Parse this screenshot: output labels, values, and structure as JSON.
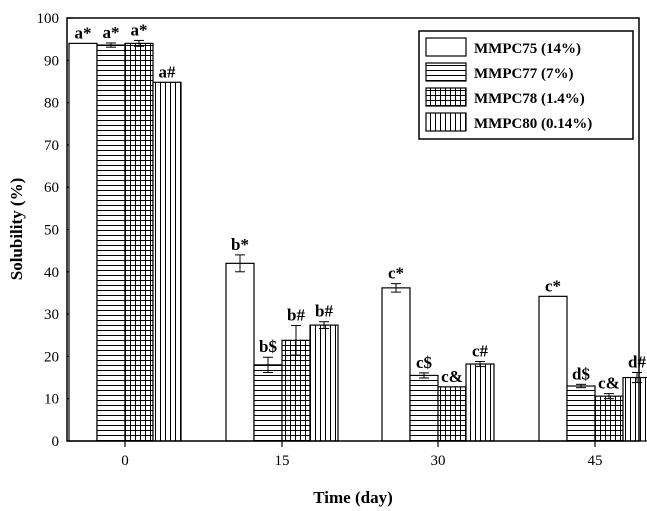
{
  "chart_data": {
    "type": "bar",
    "xlabel": "Time (day)",
    "ylabel": "Solubility (%)",
    "ylim": [
      0,
      100
    ],
    "yticks": [
      0,
      10,
      20,
      30,
      40,
      50,
      60,
      70,
      80,
      90,
      100
    ],
    "categories": [
      "0",
      "15",
      "30",
      "45"
    ],
    "legend_position": "top-right",
    "series": [
      {
        "name": "MMPC75 (14%)",
        "pattern": "none",
        "values": [
          94,
          42,
          36.2,
          34.2
        ],
        "errors": [
          0,
          2,
          1,
          0
        ],
        "labels": [
          "a*",
          "b*",
          "c*",
          "c*"
        ]
      },
      {
        "name": "MMPC77 (7%)",
        "pattern": "horizontal",
        "values": [
          93.6,
          18,
          15.5,
          13
        ],
        "errors": [
          0.5,
          1.8,
          0.6,
          0.4
        ],
        "labels": [
          "a*",
          "b$",
          "c$",
          "d$"
        ]
      },
      {
        "name": "MMPC78 (1.4%)",
        "pattern": "grid",
        "values": [
          94,
          23.8,
          12.8,
          10.6
        ],
        "errors": [
          0.7,
          3.5,
          0,
          0.6
        ],
        "labels": [
          "a*",
          "b#",
          "c&",
          "c&"
        ]
      },
      {
        "name": "MMPC80 (0.14%)",
        "pattern": "vertical",
        "values": [
          84.8,
          27.4,
          18.2,
          15
        ],
        "errors": [
          0,
          0.8,
          0.6,
          1.2
        ],
        "labels": [
          "a#",
          "b#",
          "c#",
          "d#"
        ]
      }
    ]
  }
}
